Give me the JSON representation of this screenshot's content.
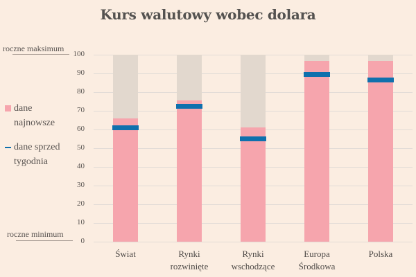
{
  "chart_data": {
    "type": "bar",
    "title": "Kurs walutowy wobec dolara",
    "xlabel": "",
    "ylabel": "",
    "ylim": [
      0,
      100
    ],
    "yticks": [
      0,
      10,
      20,
      30,
      40,
      50,
      60,
      70,
      80,
      90,
      100
    ],
    "grid": true,
    "legend_position": "left",
    "categories": [
      "Świat",
      "Rynki rozwinięte",
      "Rynki wschodzące",
      "Europa Środkowa",
      "Polska"
    ],
    "category_lines": [
      [
        "Świat"
      ],
      [
        "Rynki",
        "rozwinięte"
      ],
      [
        "Rynki",
        "wschodzące"
      ],
      [
        "Europa",
        "Środkowa"
      ],
      [
        "Polska"
      ]
    ],
    "series": [
      {
        "name": "dane najnowsze",
        "type": "bar",
        "color": "#f6a5ad",
        "values": [
          66,
          75.5,
          61,
          96.5,
          96.5
        ]
      },
      {
        "name": "dane sprzed tygodnia",
        "type": "marker",
        "color": "#0f70ad",
        "values": [
          61,
          72.5,
          55,
          89.5,
          86.5
        ]
      }
    ],
    "background_range": {
      "color": "#e2d8ce",
      "from": 0,
      "to": 100
    },
    "annotations": [
      {
        "text": "roczne maksimum",
        "y": 100
      },
      {
        "text": "roczne minimum",
        "y": 0
      }
    ]
  },
  "title": "Kurs walutowy wobec dolara",
  "annotations": {
    "max": "roczne maksimum",
    "min": "roczne minimum"
  },
  "legend": {
    "latest": [
      "dane",
      "najnowsze"
    ],
    "week_ago": [
      "dane sprzed",
      "tygodnia"
    ]
  },
  "colors": {
    "background": "#fbede1",
    "bar": "#f6a5ad",
    "range": "#e2d8ce",
    "marker": "#0f70ad"
  }
}
